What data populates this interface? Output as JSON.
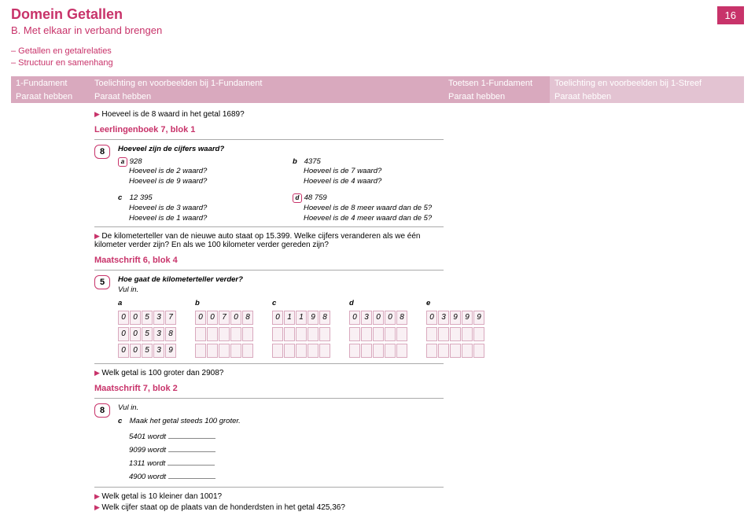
{
  "header": {
    "domain_title": "Domein Getallen",
    "sub_title": "B. Met elkaar in verband brengen",
    "page_num": "16",
    "sublist1": "– Getallen en getalrelaties",
    "sublist2": "– Structuur en samenhang"
  },
  "table": {
    "h1": "1-Fundament",
    "h2": "Toelichting en voorbeelden bij 1-Fundament",
    "h3": "Toetsen 1-Fundament",
    "h4": "Toelichting en voorbeelden bij 1-Streef",
    "r1": "Paraat hebben",
    "r2": "Paraat hebben",
    "r3": "Paraat hebben",
    "r4": "Paraat hebben"
  },
  "b1": "Hoeveel is de 8 waard in het getal 1689?",
  "ref1": "Leerlingenboek 7, blok 1",
  "ex8": {
    "num": "8",
    "title": "Hoeveel zijn de cijfers waard?",
    "a_label": "a",
    "a_val": "928",
    "a_q1": "Hoeveel is de 2 waard?",
    "a_q2": "Hoeveel is de 9 waard?",
    "b_label": "b",
    "b_val": "4375",
    "b_q1": "Hoeveel is de 7 waard?",
    "b_q2": "Hoeveel is de 4 waard?",
    "c_label": "c",
    "c_val": "12 395",
    "c_q1": "Hoeveel is de 3 waard?",
    "c_q2": "Hoeveel is de 1 waard?",
    "d_label": "d",
    "d_val": "48 759",
    "d_q1": "Hoeveel is de 8 meer waard dan de 5?",
    "d_q2": "Hoeveel is de 4 meer waard dan de 5?"
  },
  "b2": "De kilometerteller van de nieuwe auto staat op 15.399. Welke cijfers veranderen als we één kilometer verder zijn? En als we 100 kilometer verder gereden zijn?",
  "ref2": "Maatschrift 6, blok 4",
  "ex5": {
    "num": "5",
    "title": "Hoe gaat de kilometerteller verder?",
    "sub": "Vul in.",
    "cols": {
      "a": {
        "lbl": "a",
        "r1": [
          "0",
          "0",
          "5",
          "3",
          "7"
        ],
        "r2": [
          "0",
          "0",
          "5",
          "3",
          "8"
        ],
        "r3": [
          "0",
          "0",
          "5",
          "3",
          "9"
        ]
      },
      "b": {
        "lbl": "b",
        "r1": [
          "0",
          "0",
          "7",
          "0",
          "8"
        ],
        "r2": [
          "",
          "",
          "",
          "",
          ""
        ],
        "r3": [
          "",
          "",
          "",
          "",
          ""
        ]
      },
      "c": {
        "lbl": "c",
        "r1": [
          "0",
          "1",
          "1",
          "9",
          "8"
        ],
        "r2": [
          "",
          "",
          "",
          "",
          ""
        ],
        "r3": [
          "",
          "",
          "",
          "",
          ""
        ]
      },
      "d": {
        "lbl": "d",
        "r1": [
          "0",
          "3",
          "0",
          "0",
          "8"
        ],
        "r2": [
          "",
          "",
          "",
          "",
          ""
        ],
        "r3": [
          "",
          "",
          "",
          "",
          ""
        ]
      },
      "e": {
        "lbl": "e",
        "r1": [
          "0",
          "3",
          "9",
          "9",
          "9"
        ],
        "r2": [
          "",
          "",
          "",
          "",
          ""
        ],
        "r3": [
          "",
          "",
          "",
          "",
          ""
        ]
      }
    }
  },
  "b3": "Welk getal is 100 groter dan 2908?",
  "ref3": "Maatschrift 7, blok 2",
  "ex8b": {
    "num": "8",
    "title": "Vul in.",
    "c_label": "c",
    "c_text": "Maak het getal steeds 100 groter.",
    "l1": "5401 wordt",
    "l2": "9099 wordt",
    "l3": "1311 wordt",
    "l4": "4900 wordt"
  },
  "b4": "Welk getal is 10 kleiner dan 1001?",
  "b5": "Welk cijfer staat op de plaats van de honderdsten in het getal 425,36?"
}
